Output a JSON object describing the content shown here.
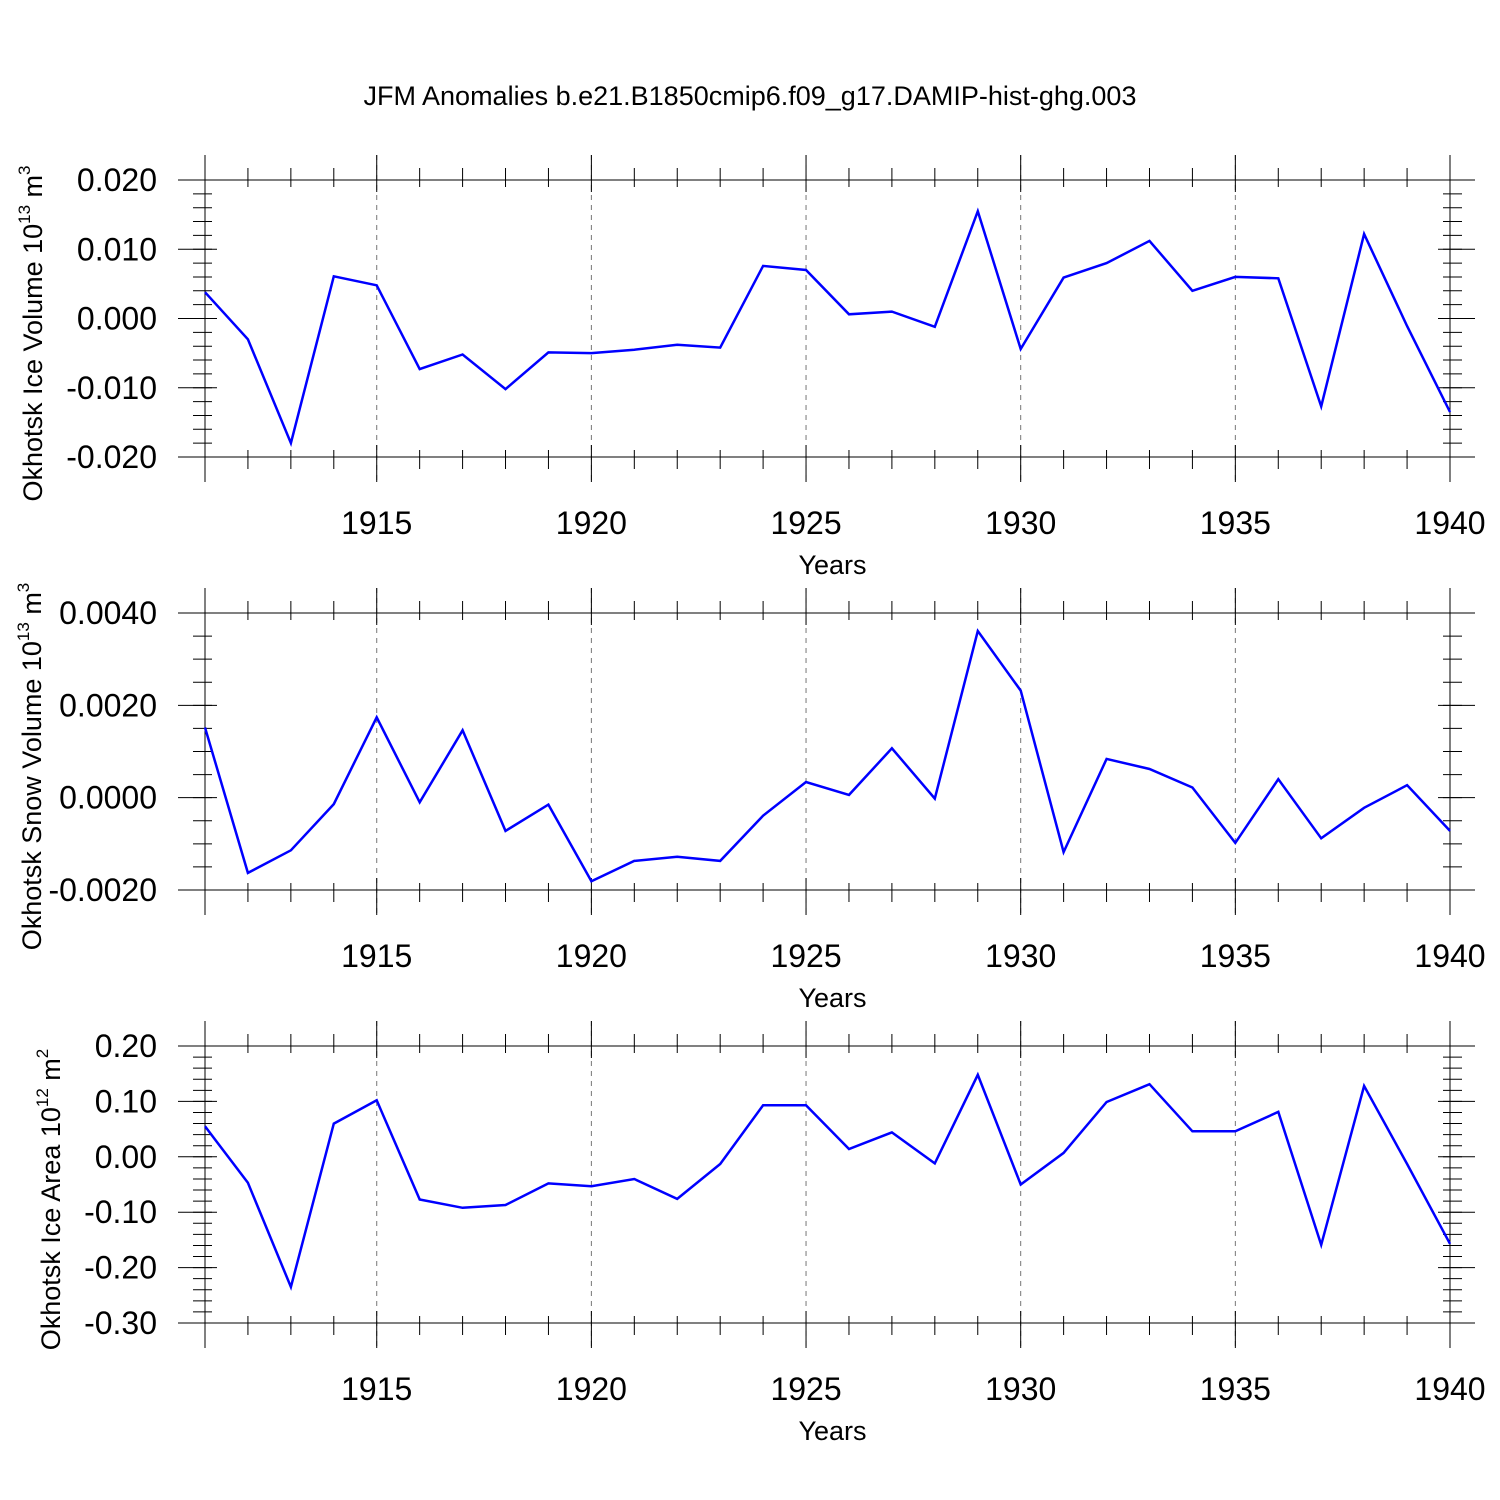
{
  "figure_title": "JFM Anomalies b.e21.B1850cmip6.f09_g17.DAMIP-hist-ghg.003",
  "colors": {
    "line": "#0000ff",
    "grid": "#777777",
    "axis": "#000000"
  },
  "chart_data": [
    {
      "type": "line",
      "xlabel": "Years",
      "ylabel_main": "Okhotsk Ice Volume 10",
      "ylabel_exp": "13",
      "ylabel_unit": " m",
      "ylabel_unit_exp": "3",
      "xlim": [
        1911,
        1940
      ],
      "ylim": [
        -0.02,
        0.02
      ],
      "x_ticks": [
        1915,
        1920,
        1925,
        1930,
        1935,
        1940
      ],
      "x_tick_labels": [
        "1915",
        "1920",
        "1925",
        "1930",
        "1935",
        "1940"
      ],
      "y_ticks": [
        -0.02,
        -0.01,
        0.0,
        0.01,
        0.02
      ],
      "y_tick_labels": [
        "-0.020",
        "-0.010",
        "0.000",
        "0.010",
        "0.020"
      ],
      "y_minor_step": 0.002,
      "grid": "vertical dashed at major x ticks",
      "x": [
        1911,
        1912,
        1913,
        1914,
        1915,
        1916,
        1917,
        1918,
        1919,
        1920,
        1921,
        1922,
        1923,
        1924,
        1925,
        1926,
        1927,
        1928,
        1929,
        1930,
        1931,
        1932,
        1933,
        1934,
        1935,
        1936,
        1937,
        1938,
        1939,
        1940
      ],
      "y": [
        0.0038,
        -0.003,
        -0.018,
        0.0061,
        0.0048,
        -0.0073,
        -0.0052,
        -0.0102,
        -0.0049,
        -0.005,
        -0.0045,
        -0.0038,
        -0.0042,
        0.0076,
        0.007,
        0.0006,
        0.001,
        -0.0012,
        0.0155,
        -0.0044,
        0.0059,
        0.008,
        0.0112,
        0.004,
        0.006,
        0.0058,
        -0.0127,
        0.0122,
        -0.0011,
        -0.0135
      ]
    },
    {
      "type": "line",
      "xlabel": "Years",
      "ylabel_main": "Okhotsk Snow Volume 10",
      "ylabel_exp": "13",
      "ylabel_unit": " m",
      "ylabel_unit_exp": "3",
      "xlim": [
        1911,
        1940
      ],
      "ylim": [
        -0.002,
        0.004
      ],
      "x_ticks": [
        1915,
        1920,
        1925,
        1930,
        1935,
        1940
      ],
      "x_tick_labels": [
        "1915",
        "1920",
        "1925",
        "1930",
        "1935",
        "1940"
      ],
      "y_ticks": [
        -0.002,
        0.0,
        0.002,
        0.004
      ],
      "y_tick_labels": [
        "-0.0020",
        "0.0000",
        "0.0020",
        "0.0040"
      ],
      "y_minor_step": 0.0005,
      "grid": "vertical dashed at major x ticks",
      "x": [
        1911,
        1912,
        1913,
        1914,
        1915,
        1916,
        1917,
        1918,
        1919,
        1920,
        1921,
        1922,
        1923,
        1924,
        1925,
        1926,
        1927,
        1928,
        1929,
        1930,
        1931,
        1932,
        1933,
        1934,
        1935,
        1936,
        1937,
        1938,
        1939,
        1940
      ],
      "y": [
        0.00152,
        -0.00163,
        -0.00114,
        -0.00014,
        0.00174,
        -0.0001,
        0.00146,
        -0.00072,
        -0.00015,
        -0.00181,
        -0.00137,
        -0.00128,
        -0.00137,
        -0.00039,
        0.00034,
        6e-05,
        0.00107,
        -2e-05,
        0.00361,
        0.00232,
        -0.00118,
        0.00084,
        0.00062,
        0.00022,
        -0.00098,
        0.0004,
        -0.00088,
        -0.00022,
        0.00027,
        -0.00072
      ]
    },
    {
      "type": "line",
      "xlabel": "Years",
      "ylabel_main": "Okhotsk Ice Area 10",
      "ylabel_exp": "12",
      "ylabel_unit": " m",
      "ylabel_unit_exp": "2",
      "xlim": [
        1911,
        1940
      ],
      "ylim": [
        -0.3,
        0.2
      ],
      "x_ticks": [
        1915,
        1920,
        1925,
        1930,
        1935,
        1940
      ],
      "x_tick_labels": [
        "1915",
        "1920",
        "1925",
        "1930",
        "1935",
        "1940"
      ],
      "y_ticks": [
        -0.3,
        -0.2,
        -0.1,
        0.0,
        0.1,
        0.2
      ],
      "y_tick_labels": [
        "-0.30",
        "-0.20",
        "-0.10",
        "0.00",
        "0.10",
        "0.20"
      ],
      "y_minor_step": 0.02,
      "grid": "vertical dashed at major x ticks",
      "x": [
        1911,
        1912,
        1913,
        1914,
        1915,
        1916,
        1917,
        1918,
        1919,
        1920,
        1921,
        1922,
        1923,
        1924,
        1925,
        1926,
        1927,
        1928,
        1929,
        1930,
        1931,
        1932,
        1933,
        1934,
        1935,
        1936,
        1937,
        1938,
        1939,
        1940
      ],
      "y": [
        0.055,
        -0.047,
        -0.235,
        0.06,
        0.102,
        -0.077,
        -0.092,
        -0.087,
        -0.048,
        -0.053,
        -0.04,
        -0.076,
        -0.013,
        0.093,
        0.093,
        0.014,
        0.044,
        -0.012,
        0.148,
        -0.05,
        0.007,
        0.099,
        0.131,
        0.046,
        0.046,
        0.081,
        -0.159,
        0.128,
        -0.013,
        -0.157
      ]
    }
  ]
}
